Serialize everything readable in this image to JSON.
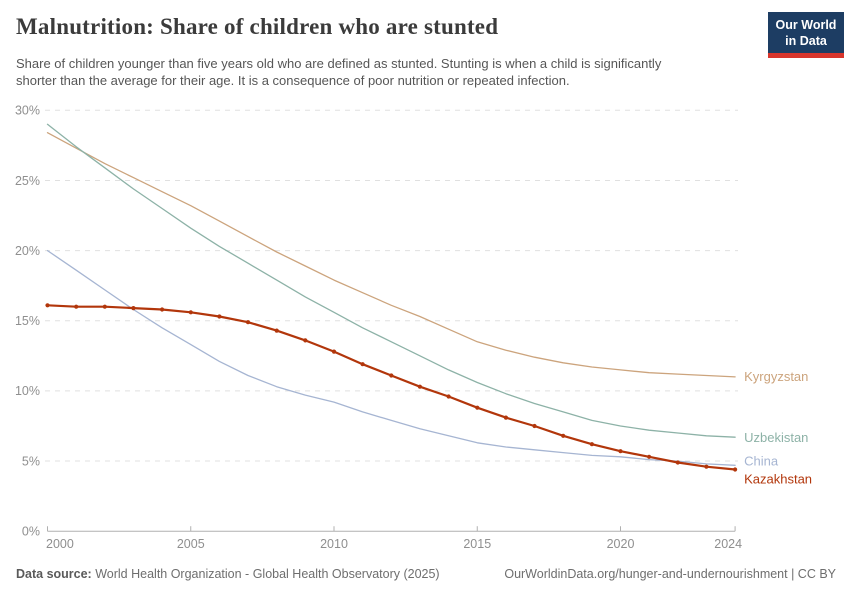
{
  "header": {
    "title": "Malnutrition: Share of children who are stunted",
    "subtitle_line1": "Share of children younger than five years old who are defined as stunted. Stunting is when a child is significantly",
    "subtitle_line2": "shorter than the average for their age. It is a consequence of poor nutrition or repeated infection.",
    "logo": {
      "line1": "Our World",
      "line2": "in Data",
      "bg_color": "#1d3d63",
      "bar_color": "#d8352c"
    }
  },
  "chart_data": {
    "type": "line",
    "title": "Malnutrition: Share of children who are stunted",
    "xlabel": "",
    "ylabel": "",
    "x": [
      2000,
      2001,
      2002,
      2003,
      2004,
      2005,
      2006,
      2007,
      2008,
      2009,
      2010,
      2011,
      2012,
      2013,
      2014,
      2015,
      2016,
      2017,
      2018,
      2019,
      2020,
      2021,
      2022,
      2023,
      2024
    ],
    "series": [
      {
        "name": "Kyrgyzstan",
        "color": "#cca47d",
        "values": [
          28.4,
          27.3,
          26.2,
          25.2,
          24.2,
          23.2,
          22.1,
          21.0,
          19.9,
          18.9,
          17.9,
          17.0,
          16.1,
          15.3,
          14.4,
          13.5,
          12.9,
          12.4,
          12.0,
          11.7,
          11.5,
          11.3,
          11.2,
          11.1,
          11.0
        ],
        "highlight": false,
        "markers": false,
        "label_dy": 0
      },
      {
        "name": "Uzbekistan",
        "color": "#8db2a7",
        "values": [
          29.0,
          27.4,
          25.9,
          24.4,
          23.0,
          21.6,
          20.3,
          19.1,
          17.9,
          16.7,
          15.6,
          14.5,
          13.5,
          12.5,
          11.5,
          10.6,
          9.8,
          9.1,
          8.5,
          7.9,
          7.5,
          7.2,
          7.0,
          6.8,
          6.7
        ],
        "highlight": false,
        "markers": false,
        "label_dy": 1
      },
      {
        "name": "China",
        "color": "#a6b5d2",
        "values": [
          20.0,
          18.6,
          17.2,
          15.8,
          14.5,
          13.3,
          12.1,
          11.1,
          10.3,
          9.7,
          9.2,
          8.5,
          7.9,
          7.3,
          6.8,
          6.3,
          6.0,
          5.8,
          5.6,
          5.4,
          5.3,
          5.1,
          5.0,
          4.8,
          4.7
        ],
        "highlight": false,
        "markers": false,
        "label_dy": -4
      },
      {
        "name": "Kazakhstan",
        "color": "#b2360b",
        "values": [
          16.1,
          16.0,
          16.0,
          15.9,
          15.8,
          15.6,
          15.3,
          14.9,
          14.3,
          13.6,
          12.8,
          11.9,
          11.1,
          10.3,
          9.6,
          8.8,
          8.1,
          7.5,
          6.8,
          6.2,
          5.7,
          5.3,
          4.9,
          4.6,
          4.4
        ],
        "highlight": true,
        "markers": true,
        "label_dy": 10
      }
    ],
    "ylim": [
      0,
      30
    ],
    "yticks": [
      0,
      5,
      10,
      15,
      20,
      25,
      30
    ],
    "ytick_suffix": "%",
    "xticks": [
      2000,
      2005,
      2010,
      2015,
      2020,
      2024
    ],
    "grid": "horizontal-dashed",
    "legend_position": "right-end-labels",
    "axis_color": "#b0b0b0",
    "grid_color": "#e0e0e0",
    "tick_label_color": "#8f8f8f"
  },
  "footer": {
    "datasource_label": "Data source:",
    "datasource_text": "World Health Organization - Global Health Observatory (2025)",
    "link": "OurWorldinData.org/hunger-and-undernourishment | CC BY"
  }
}
